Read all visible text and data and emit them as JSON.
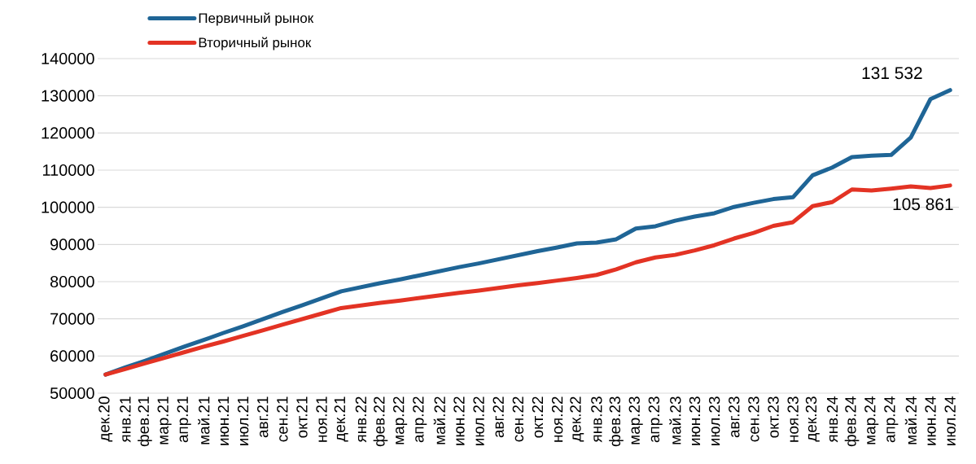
{
  "chart_data": {
    "type": "line",
    "categories": [
      "дек.20",
      "янв.21",
      "фев.21",
      "мар.21",
      "апр.21",
      "май.21",
      "июн.21",
      "июл.21",
      "авг.21",
      "сен.21",
      "окт.21",
      "ноя.21",
      "дек.21",
      "янв.22",
      "фев.22",
      "мар.22",
      "апр.22",
      "май.22",
      "июн.22",
      "июл.22",
      "авг.22",
      "сен.22",
      "окт.22",
      "ноя.22",
      "дек.22",
      "янв.23",
      "фев.23",
      "мар.23",
      "апр.23",
      "май.23",
      "июн.23",
      "июл.23",
      "авг.23",
      "сен.23",
      "окт.23",
      "ноя.23",
      "дек.23",
      "янв.24",
      "фев.24",
      "мар.24",
      "апр.24",
      "май.24",
      "июн.24",
      "июл.24"
    ],
    "series": [
      {
        "name": "Первичный рынок",
        "color": "#1f6596",
        "values": [
          55000,
          56900,
          58700,
          60600,
          62500,
          64300,
          66200,
          68000,
          69900,
          71800,
          73600,
          75500,
          77400,
          78500,
          79600,
          80600,
          81700,
          82800,
          83900,
          84900,
          86000,
          87100,
          88200,
          89200,
          90300,
          90500,
          91400,
          94300,
          94900,
          96400,
          97500,
          98400,
          100100,
          101200,
          102200,
          102700,
          108600,
          110700,
          113500,
          113900,
          114100,
          118800,
          129100,
          131532
        ]
      },
      {
        "name": "Вторичный рынок",
        "color": "#e33324",
        "values": [
          55000,
          56500,
          58000,
          59500,
          61000,
          62500,
          63900,
          65400,
          66900,
          68400,
          69900,
          71400,
          72900,
          73600,
          74300,
          74900,
          75600,
          76300,
          77000,
          77600,
          78300,
          79000,
          79600,
          80300,
          81000,
          81800,
          83300,
          85200,
          86500,
          87200,
          88400,
          89800,
          91600,
          93100,
          95000,
          96000,
          100300,
          101400,
          104800,
          104500,
          105000,
          105600,
          105200,
          105861
        ]
      }
    ],
    "ylim": [
      50000,
      140000
    ],
    "yticks": [
      50000,
      60000,
      70000,
      80000,
      90000,
      100000,
      110000,
      120000,
      130000,
      140000
    ],
    "grid": "y",
    "legend": "top left",
    "marker": "none",
    "line_style": "solid",
    "annotations": [
      {
        "text": "131 532",
        "x": "июл.24",
        "y": 131532
      },
      {
        "text": "105 861",
        "x": "июл.24",
        "y": 105861
      }
    ]
  }
}
